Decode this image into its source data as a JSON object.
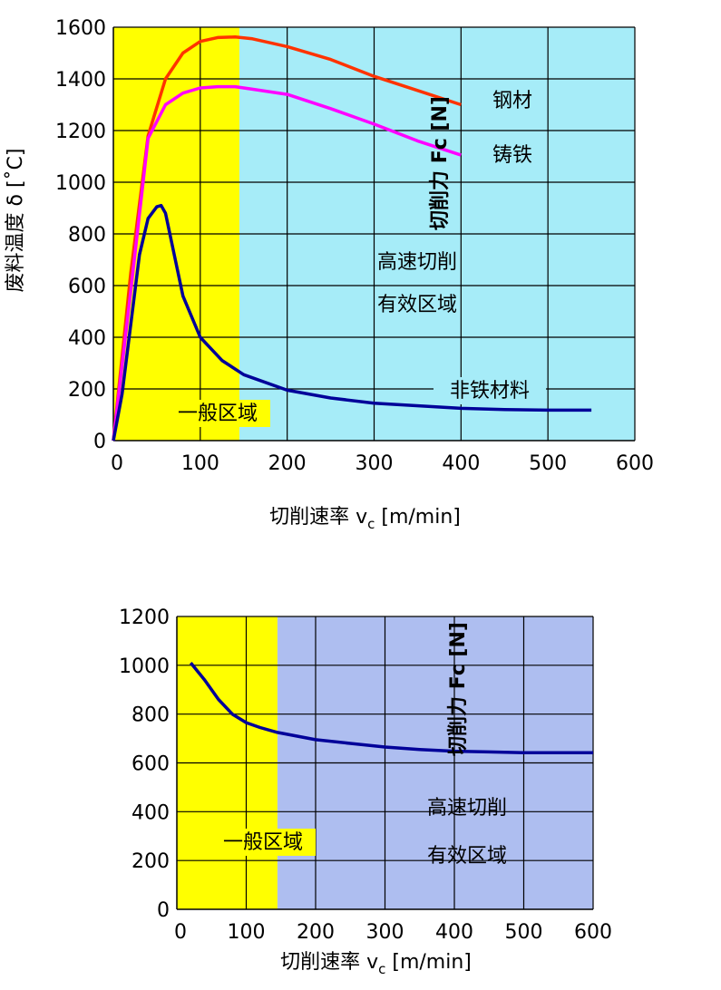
{
  "chart_data": [
    {
      "type": "line",
      "xlabel": "切削速率 v",
      "xlabel_sub": "c",
      "xlabel_unit": " [m/min]",
      "ylabel": "废料温度 δ [˚C]",
      "y2label": "切削力 Fc [N]",
      "xlim": [
        0,
        600
      ],
      "ylim": [
        0,
        1600
      ],
      "x_ticks": [
        0,
        100,
        200,
        300,
        400,
        500,
        600
      ],
      "y_ticks": [
        0,
        200,
        400,
        600,
        800,
        1000,
        1200,
        1400,
        1600
      ],
      "grid": true,
      "regions": [
        {
          "label": "一般区域",
          "x_range": [
            0,
            145
          ],
          "color": "#ffff00"
        },
        {
          "label": "高速切削\n有效区域",
          "label_lines": [
            "高速切削",
            "有效区域"
          ],
          "x_range": [
            145,
            600
          ],
          "color": "#a6ecf8"
        }
      ],
      "series": [
        {
          "name": "钢材",
          "color": "#ff3300",
          "x": [
            0,
            20,
            40,
            60,
            80,
            100,
            120,
            140,
            160,
            200,
            250,
            300,
            350,
            400
          ],
          "values": [
            0,
            650,
            1180,
            1400,
            1500,
            1545,
            1560,
            1562,
            1555,
            1525,
            1475,
            1410,
            1355,
            1300
          ]
        },
        {
          "name": "铸铁",
          "color": "#ff00ff",
          "x": [
            0,
            20,
            40,
            60,
            80,
            100,
            120,
            140,
            160,
            200,
            250,
            300,
            350,
            400
          ],
          "values": [
            0,
            580,
            1170,
            1300,
            1345,
            1365,
            1370,
            1370,
            1360,
            1340,
            1285,
            1225,
            1160,
            1105
          ]
        },
        {
          "name": "非铁材料",
          "color": "#000099",
          "x": [
            0,
            10,
            20,
            30,
            40,
            50,
            55,
            60,
            70,
            80,
            100,
            125,
            150,
            200,
            250,
            300,
            400,
            450,
            500,
            550
          ],
          "values": [
            0,
            180,
            450,
            720,
            860,
            905,
            910,
            880,
            720,
            560,
            400,
            310,
            255,
            195,
            165,
            145,
            125,
            120,
            118,
            118
          ]
        }
      ]
    },
    {
      "type": "line",
      "xlabel": "切削速率 v",
      "xlabel_sub": "c",
      "xlabel_unit": " [m/min]",
      "y2label": "切削力 Fc [N]",
      "xlim": [
        0,
        600
      ],
      "ylim": [
        0,
        1200
      ],
      "x_ticks": [
        0,
        100,
        200,
        300,
        400,
        500,
        600
      ],
      "y_ticks": [
        0,
        200,
        400,
        600,
        800,
        1000,
        1200
      ],
      "grid": true,
      "regions": [
        {
          "label": "一般区域",
          "x_range": [
            0,
            145
          ],
          "color": "#ffff00"
        },
        {
          "label": "高速切削\n有效区域",
          "label_lines": [
            "高速切削",
            "有效区域"
          ],
          "x_range": [
            145,
            600
          ],
          "color": "#aebef0"
        }
      ],
      "series": [
        {
          "color": "#000099",
          "x": [
            20,
            40,
            60,
            80,
            100,
            120,
            145,
            200,
            250,
            300,
            350,
            400,
            450,
            500,
            550,
            600
          ],
          "values": [
            1010,
            940,
            860,
            800,
            765,
            745,
            725,
            695,
            680,
            665,
            655,
            648,
            645,
            642,
            642,
            642
          ]
        }
      ]
    }
  ]
}
